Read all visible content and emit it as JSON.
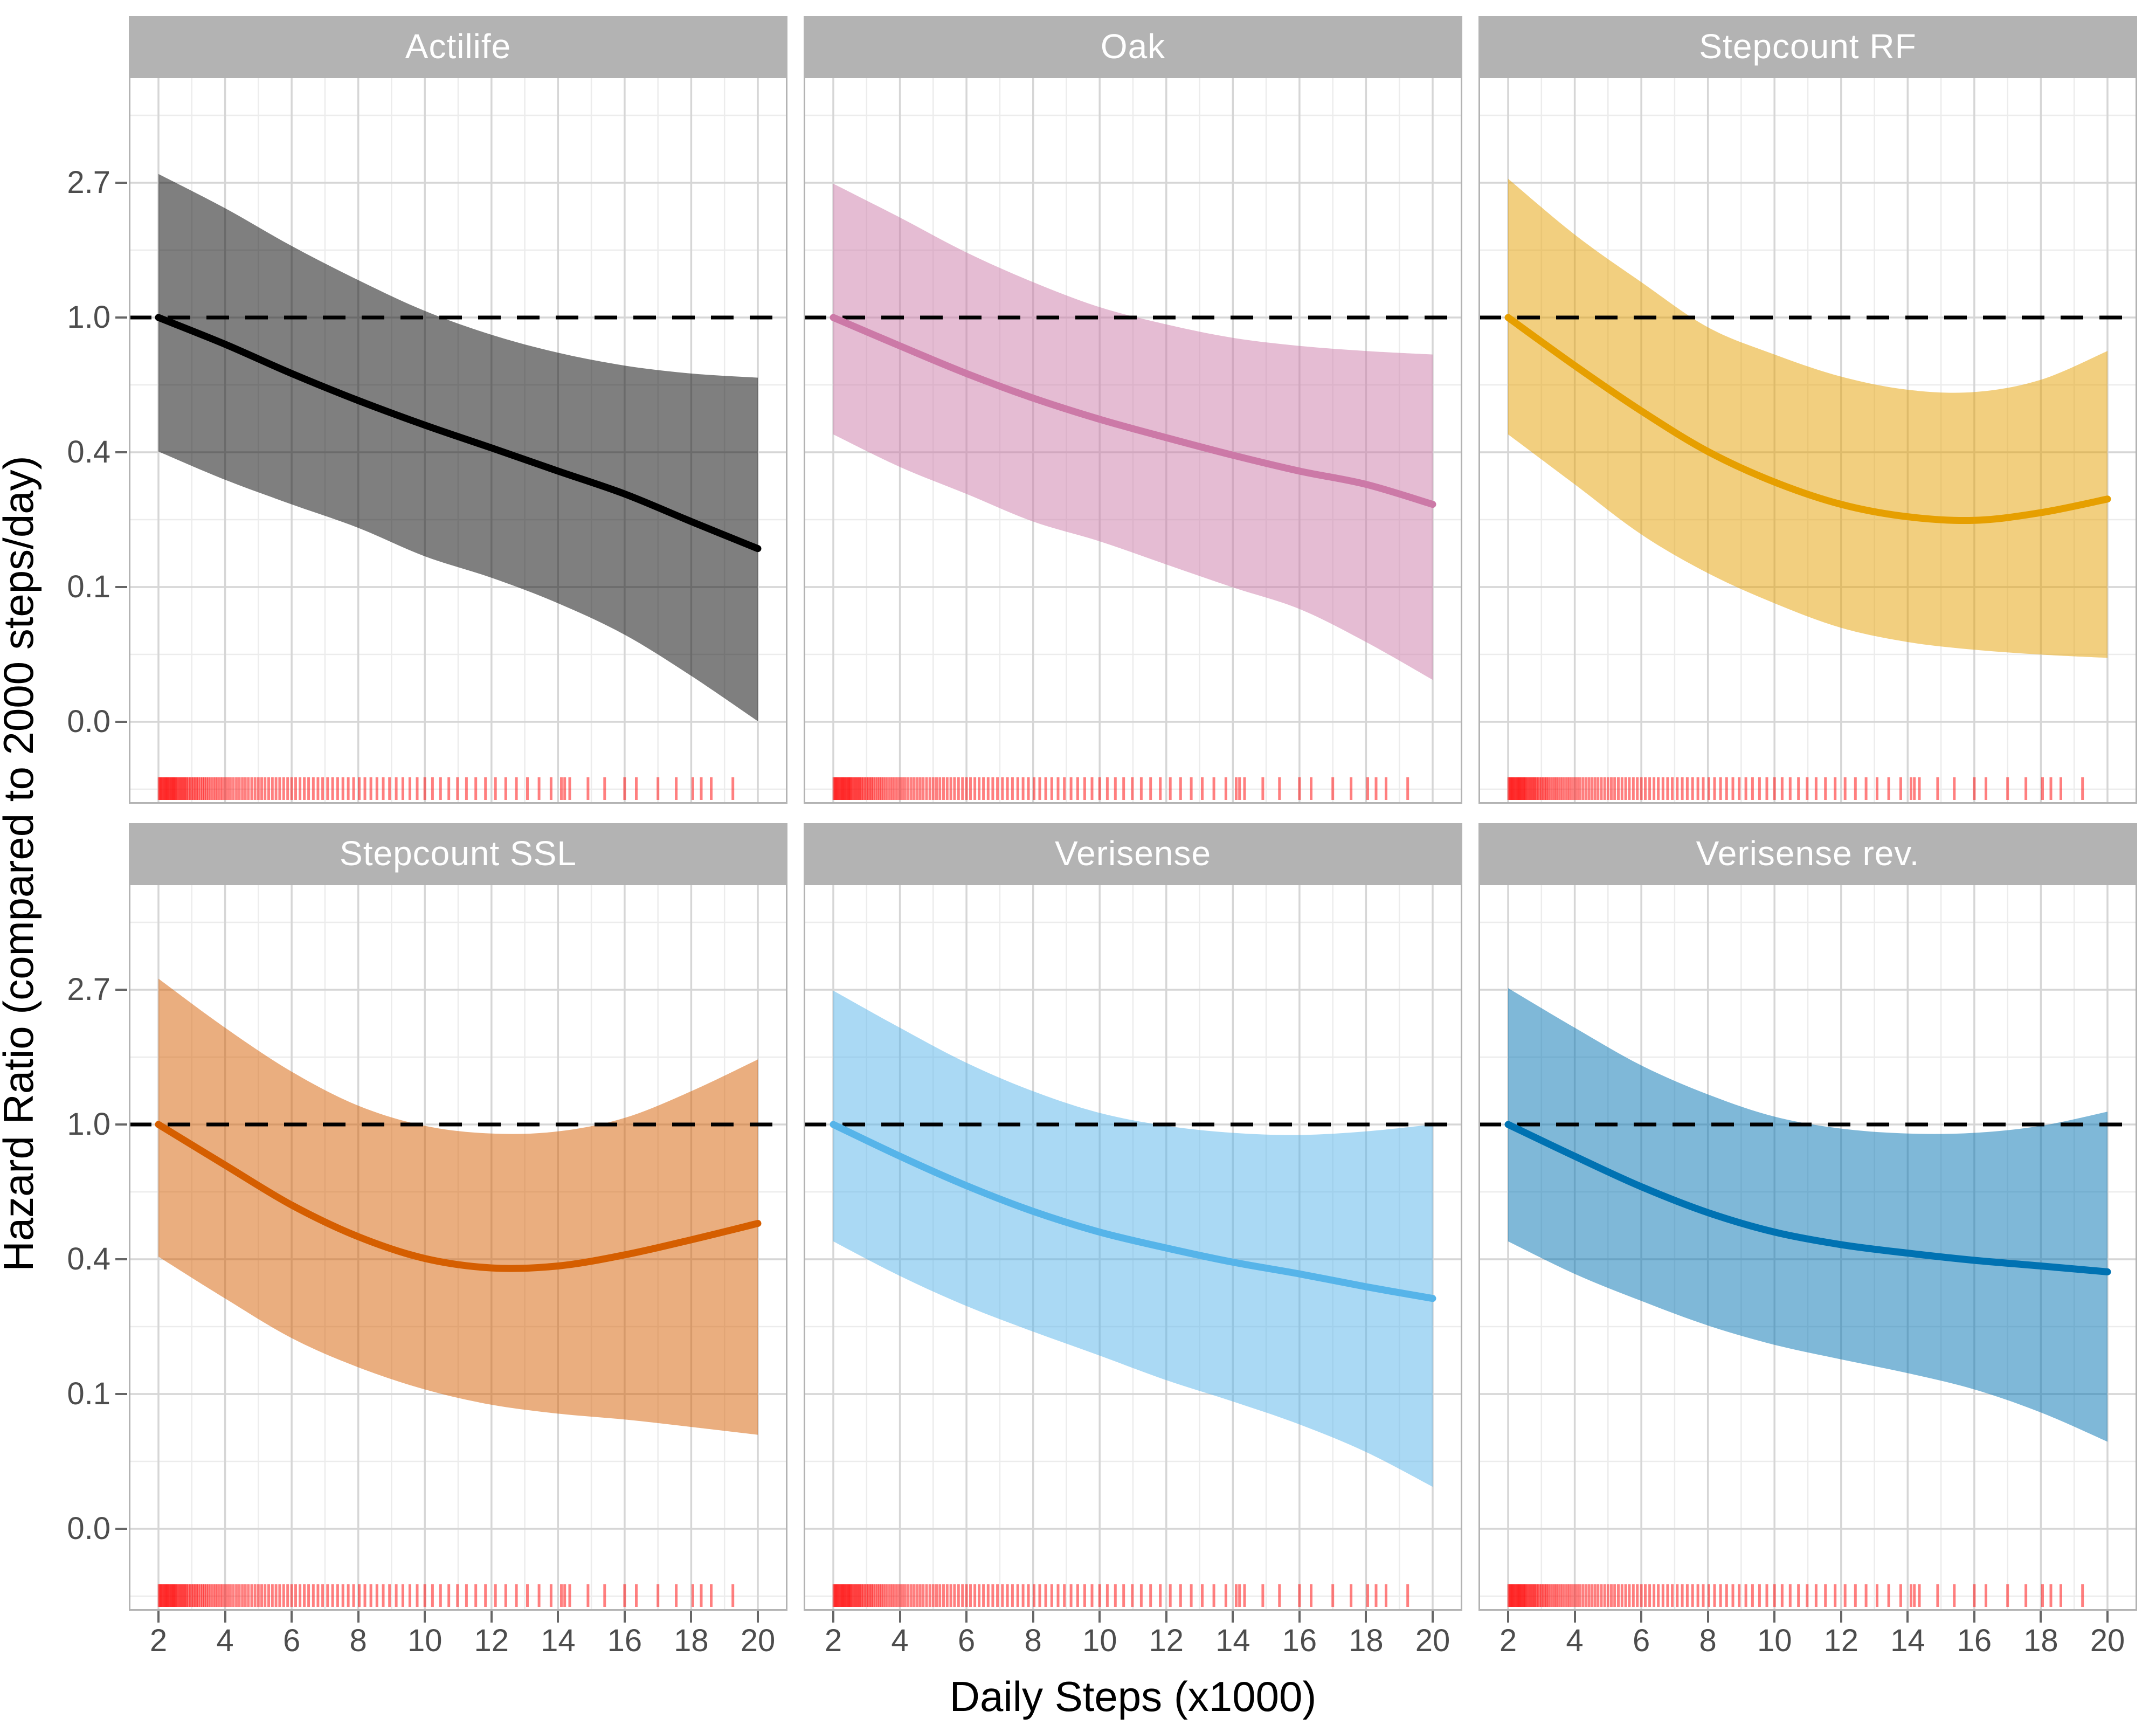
{
  "chart_data": {
    "type": "line",
    "title": "",
    "xlabel": "Daily Steps (x1000)",
    "ylabel": "Hazard Ratio (compared to 2000 steps/day)",
    "layout": "2 rows x 3 columns facet grid, shared axes",
    "x_axis": {
      "ticks": [
        2,
        4,
        6,
        8,
        10,
        12,
        14,
        16,
        18,
        20
      ],
      "minor_ticks": [
        3,
        5,
        7,
        9,
        11,
        13,
        15,
        17,
        19
      ],
      "range": [
        1.1,
        20.9
      ]
    },
    "y_axis": {
      "scale": "log",
      "tick_labels": [
        "2.7",
        "1.0",
        "0.4",
        "0.1",
        "0.0"
      ],
      "tick_values": [
        2.71828,
        1.0,
        0.36788,
        0.13534,
        0.04979
      ],
      "minor_log_values": [
        1.5,
        0.5,
        -0.5,
        -1.5,
        -2.5,
        -3.5
      ],
      "grid": true
    },
    "reference_line": {
      "y": 1.0,
      "style": "dashed",
      "color": "#000000"
    },
    "x": [
      2,
      4,
      6,
      8,
      10,
      12,
      14,
      16,
      18,
      20
    ],
    "facets": [
      {
        "label": "Actilife",
        "line_color": "#000000",
        "y": [
          1.0,
          0.82,
          0.66,
          0.54,
          0.45,
          0.38,
          0.32,
          0.27,
          0.22,
          0.18
        ],
        "ymin": [
          0.37,
          0.3,
          0.25,
          0.21,
          0.17,
          0.145,
          0.12,
          0.095,
          0.07,
          0.05
        ],
        "ymax": [
          2.9,
          2.25,
          1.7,
          1.32,
          1.05,
          0.88,
          0.77,
          0.7,
          0.66,
          0.64
        ]
      },
      {
        "label": "Oak",
        "line_color": "#CC79A7",
        "y": [
          1.0,
          0.81,
          0.66,
          0.55,
          0.47,
          0.41,
          0.36,
          0.32,
          0.29,
          0.25
        ],
        "ymin": [
          0.42,
          0.33,
          0.27,
          0.22,
          0.19,
          0.16,
          0.135,
          0.115,
          0.09,
          0.068
        ],
        "ymax": [
          2.7,
          2.1,
          1.62,
          1.3,
          1.08,
          0.95,
          0.86,
          0.81,
          0.78,
          0.76
        ]
      },
      {
        "label": "Stepcount RF",
        "line_color": "#E69F00",
        "y": [
          1.0,
          0.7,
          0.5,
          0.37,
          0.295,
          0.25,
          0.228,
          0.222,
          0.235,
          0.26
        ],
        "ymin": [
          0.42,
          0.29,
          0.2,
          0.15,
          0.12,
          0.1,
          0.09,
          0.085,
          0.082,
          0.08
        ],
        "ymax": [
          2.8,
          1.85,
          1.3,
          0.93,
          0.76,
          0.645,
          0.585,
          0.575,
          0.63,
          0.78
        ]
      },
      {
        "label": "Stepcount SSL",
        "line_color": "#D55E00",
        "y": [
          1.0,
          0.74,
          0.55,
          0.435,
          0.37,
          0.345,
          0.35,
          0.38,
          0.425,
          0.48
        ],
        "ymin": [
          0.375,
          0.275,
          0.205,
          0.165,
          0.14,
          0.125,
          0.117,
          0.112,
          0.106,
          0.1
        ],
        "ymax": [
          2.95,
          2.05,
          1.48,
          1.15,
          0.99,
          0.935,
          0.95,
          1.05,
          1.28,
          1.62
        ]
      },
      {
        "label": "Verisense",
        "line_color": "#56B4E9",
        "y": [
          1.0,
          0.79,
          0.635,
          0.525,
          0.45,
          0.4,
          0.36,
          0.33,
          0.3,
          0.275
        ],
        "ymin": [
          0.42,
          0.325,
          0.26,
          0.215,
          0.18,
          0.15,
          0.128,
          0.108,
          0.088,
          0.068
        ],
        "ymax": [
          2.7,
          2.05,
          1.58,
          1.28,
          1.09,
          0.99,
          0.94,
          0.925,
          0.95,
          1.0
        ]
      },
      {
        "label": "Verisense rev.",
        "line_color": "#0072B2",
        "y": [
          1.0,
          0.79,
          0.63,
          0.52,
          0.45,
          0.41,
          0.385,
          0.365,
          0.35,
          0.335
        ],
        "ymin": [
          0.42,
          0.33,
          0.27,
          0.225,
          0.195,
          0.175,
          0.158,
          0.14,
          0.118,
          0.095
        ],
        "ymax": [
          2.75,
          2.05,
          1.55,
          1.25,
          1.06,
          0.97,
          0.935,
          0.94,
          0.99,
          1.1
        ]
      }
    ],
    "rug": {
      "color": "#ff0000",
      "opacity": 0.5,
      "x": [
        2.02,
        2.05,
        2.08,
        2.11,
        2.14,
        2.17,
        2.2,
        2.23,
        2.26,
        2.29,
        2.32,
        2.35,
        2.38,
        2.41,
        2.44,
        2.47,
        2.5,
        2.53,
        2.57,
        2.61,
        2.65,
        2.69,
        2.73,
        2.77,
        2.81,
        2.85,
        2.9,
        2.95,
        3.0,
        3.05,
        3.1,
        3.15,
        3.2,
        3.26,
        3.32,
        3.38,
        3.44,
        3.5,
        3.57,
        3.64,
        3.71,
        3.78,
        3.85,
        3.92,
        4.0,
        4.08,
        4.16,
        4.25,
        4.34,
        4.43,
        4.52,
        4.61,
        4.7,
        4.8,
        4.9,
        5.0,
        5.1,
        5.2,
        5.31,
        5.42,
        5.53,
        5.64,
        5.76,
        5.88,
        6.0,
        6.12,
        6.25,
        6.38,
        6.51,
        6.65,
        6.79,
        6.93,
        7.08,
        7.23,
        7.38,
        7.54,
        7.7,
        7.86,
        8.03,
        8.2,
        8.38,
        8.56,
        8.75,
        8.94,
        9.14,
        9.34,
        9.55,
        9.77,
        10.0,
        10.23,
        10.47,
        10.72,
        10.98,
        11.25,
        11.53,
        11.82,
        12.12,
        12.43,
        12.75,
        13.08,
        13.43,
        13.79,
        14.1,
        14.2,
        14.35,
        14.9,
        15.4,
        16.0,
        16.35,
        17.0,
        17.55,
        18.05,
        18.3,
        18.6,
        19.25
      ]
    },
    "theme": {
      "strip_bg": "#b3b3b3",
      "strip_text": "#ffffff",
      "grid_major": "#d6d6d6",
      "grid_minor": "#ececec",
      "panel_border": "#b3b3b3",
      "panel_bg": "#ffffff",
      "tick_label_color": "#4d4d4d",
      "tick_mark_color": "#666666",
      "ribbon_opacity": 0.5
    }
  }
}
